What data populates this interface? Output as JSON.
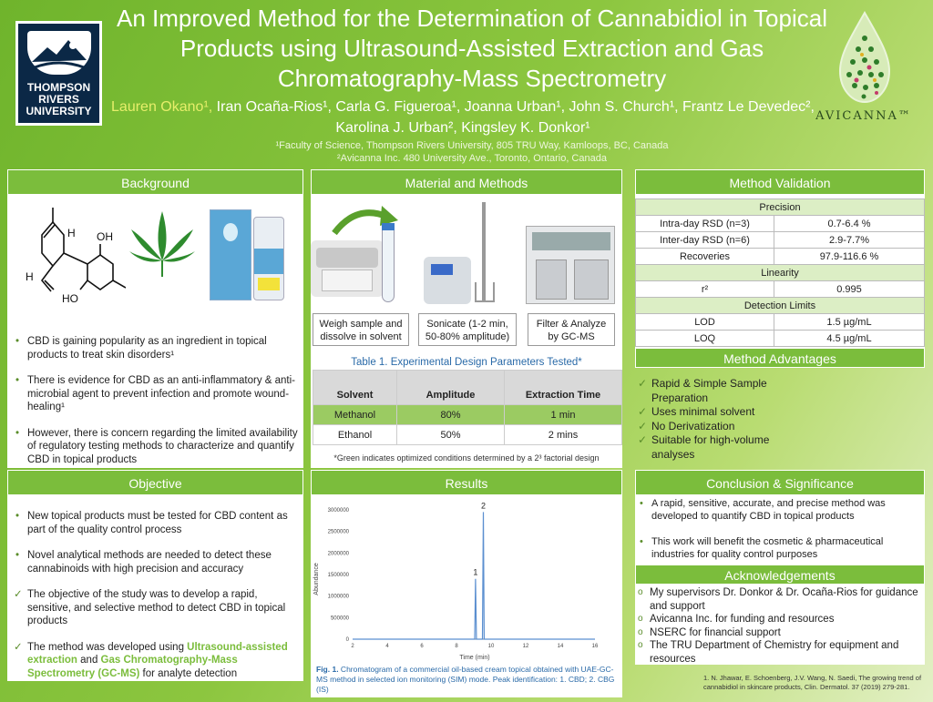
{
  "header": {
    "title": "An Improved Method for the Determination of Cannabidiol in Topical Products using Ultrasound-Assisted Extraction and Gas Chromatography-Mass Spectrometry",
    "authors_first": "Lauren Okano¹,",
    "authors_rest": " Iran Ocaña-Rios¹, Carla G. Figueroa¹, Joanna Urban¹, John S. Church¹, Frantz Le Devedec², Karolina J. Urban², Kingsley K. Donkor¹",
    "affiliation1": "¹Faculty of Science, Thompson Rivers University, 805 TRU Way, Kamloops, BC, Canada",
    "affiliation2": "²Avicanna Inc. 480 University Ave., Toronto, Ontario, Canada",
    "tru_logo_text": "THOMPSON RIVERS UNIVERSITY",
    "avicanna_text": "AVICANNA™"
  },
  "background": {
    "title": "Background",
    "bullets": [
      "CBD is gaining popularity as an ingredient in topical products to treat skin disorders¹",
      "There is evidence for CBD as an anti-inflammatory & anti-microbial agent to prevent infection and promote wound-healing¹",
      "However, there is concern regarding the limited availability of regulatory testing methods to characterize and quantify CBD in topical products"
    ],
    "molecule_labels": [
      "H",
      "OH",
      "H",
      "HO"
    ]
  },
  "objective": {
    "title": "Objective",
    "bullets": [
      "New topical products must be tested for CBD content as part of the quality control process",
      "Novel analytical methods are needed to detect these cannabinoids with high precision and accuracy",
      "The objective of the study was to develop a rapid, sensitive, and selective method to detect CBD in topical products"
    ],
    "last_pre": "The method was developed using ",
    "last_hl1": "Ultrasound-assisted extraction",
    "last_mid": " and ",
    "last_hl2": "Gas Chromatography-Mass Spectrometry (GC-MS)",
    "last_post": " for analyte detection"
  },
  "methods": {
    "title": "Material and Methods",
    "steps": [
      "Weigh sample and dissolve in solvent",
      "Sonicate (1-2 min, 50-80% amplitude)",
      "Filter & Analyze by GC-MS"
    ],
    "table_caption": "Table 1. Experimental Design Parameters Tested*",
    "table_headers": [
      "Solvent",
      "Amplitude",
      "Extraction Time"
    ],
    "table_rows": [
      [
        "Methanol",
        "80%",
        "1 min"
      ],
      [
        "Ethanol",
        "50%",
        "2 mins"
      ]
    ],
    "footnote": "*Green indicates optimized conditions determined by a 2³ factorial design"
  },
  "results": {
    "title": "Results",
    "caption_bold": "Fig. 1.",
    "caption": " Chromatogram of a commercial oil-based cream topical obtained with UAE-GC-MS method in selected ion monitoring (SIM) mode. Peak identification: 1. CBD; 2. CBG (IS)"
  },
  "chart_data": {
    "type": "line",
    "xlabel": "Time (min)",
    "ylabel": "Abundance",
    "xlim": [
      2,
      16
    ],
    "ylim": [
      0,
      3000000
    ],
    "x_ticks": [
      2,
      4,
      6,
      8,
      10,
      12,
      14,
      16
    ],
    "y_ticks": [
      0,
      500000,
      1000000,
      1500000,
      2000000,
      2500000,
      3000000
    ],
    "series": [
      {
        "x": [
          2,
          8.9,
          9.05,
          9.1,
          9.15,
          9.3,
          9.5,
          9.55,
          9.6,
          9.65,
          9.8,
          16
        ],
        "y": [
          0,
          0,
          0,
          1400000,
          0,
          0,
          0,
          2950000,
          0,
          0,
          0,
          0
        ]
      }
    ],
    "peak_labels": [
      {
        "label": "1",
        "x": 9.1,
        "y": 1400000
      },
      {
        "label": "2",
        "x": 9.55,
        "y": 2950000
      }
    ],
    "color": "#5b8fd0"
  },
  "validation": {
    "title": "Method Validation",
    "precision_label": "Precision",
    "rows1": [
      [
        "Intra-day RSD (n=3)",
        "0.7-6.4 %"
      ],
      [
        "Inter-day RSD (n=6)",
        "2.9-7.7%"
      ],
      [
        "Recoveries",
        "97.9-116.6 %"
      ]
    ],
    "linearity_label": "Linearity",
    "rows2": [
      [
        "r²",
        "0.995"
      ]
    ],
    "detection_label": "Detection Limits",
    "rows3": [
      [
        "LOD",
        "1.5 µg/mL"
      ],
      [
        "LOQ",
        "4.5 µg/mL"
      ]
    ]
  },
  "advantages": {
    "title": "Method Advantages",
    "items": [
      "Rapid & Simple Sample Preparation",
      "Uses minimal solvent",
      "No Derivatization",
      "Suitable for high-volume analyses"
    ]
  },
  "conclusion": {
    "title": "Conclusion & Significance",
    "bullets": [
      "A rapid, sensitive, accurate, and precise method was developed to quantify CBD in topical products",
      "This work will benefit the cosmetic & pharmaceutical industries for quality control purposes"
    ]
  },
  "acknowledgements": {
    "title": "Acknowledgements",
    "items": [
      "My supervisors Dr. Donkor & Dr. Ocaña-Rios for guidance and support",
      "Avicanna Inc. for funding and resources",
      "NSERC for financial support",
      "The TRU Department of Chemistry for equipment and resources"
    ]
  },
  "reference": "1.  N. Jhawar, E. Schoenberg, J.V. Wang, N. Saedi, The growing trend of cannabidiol in skincare products, Clin. Dermatol. 37 (2019) 279-281.",
  "colors": {
    "accent": "#7bbd3c",
    "highlight": "#7bbd3c",
    "optimized_row": "#9bcb62",
    "trace": "#5b8fd0"
  }
}
